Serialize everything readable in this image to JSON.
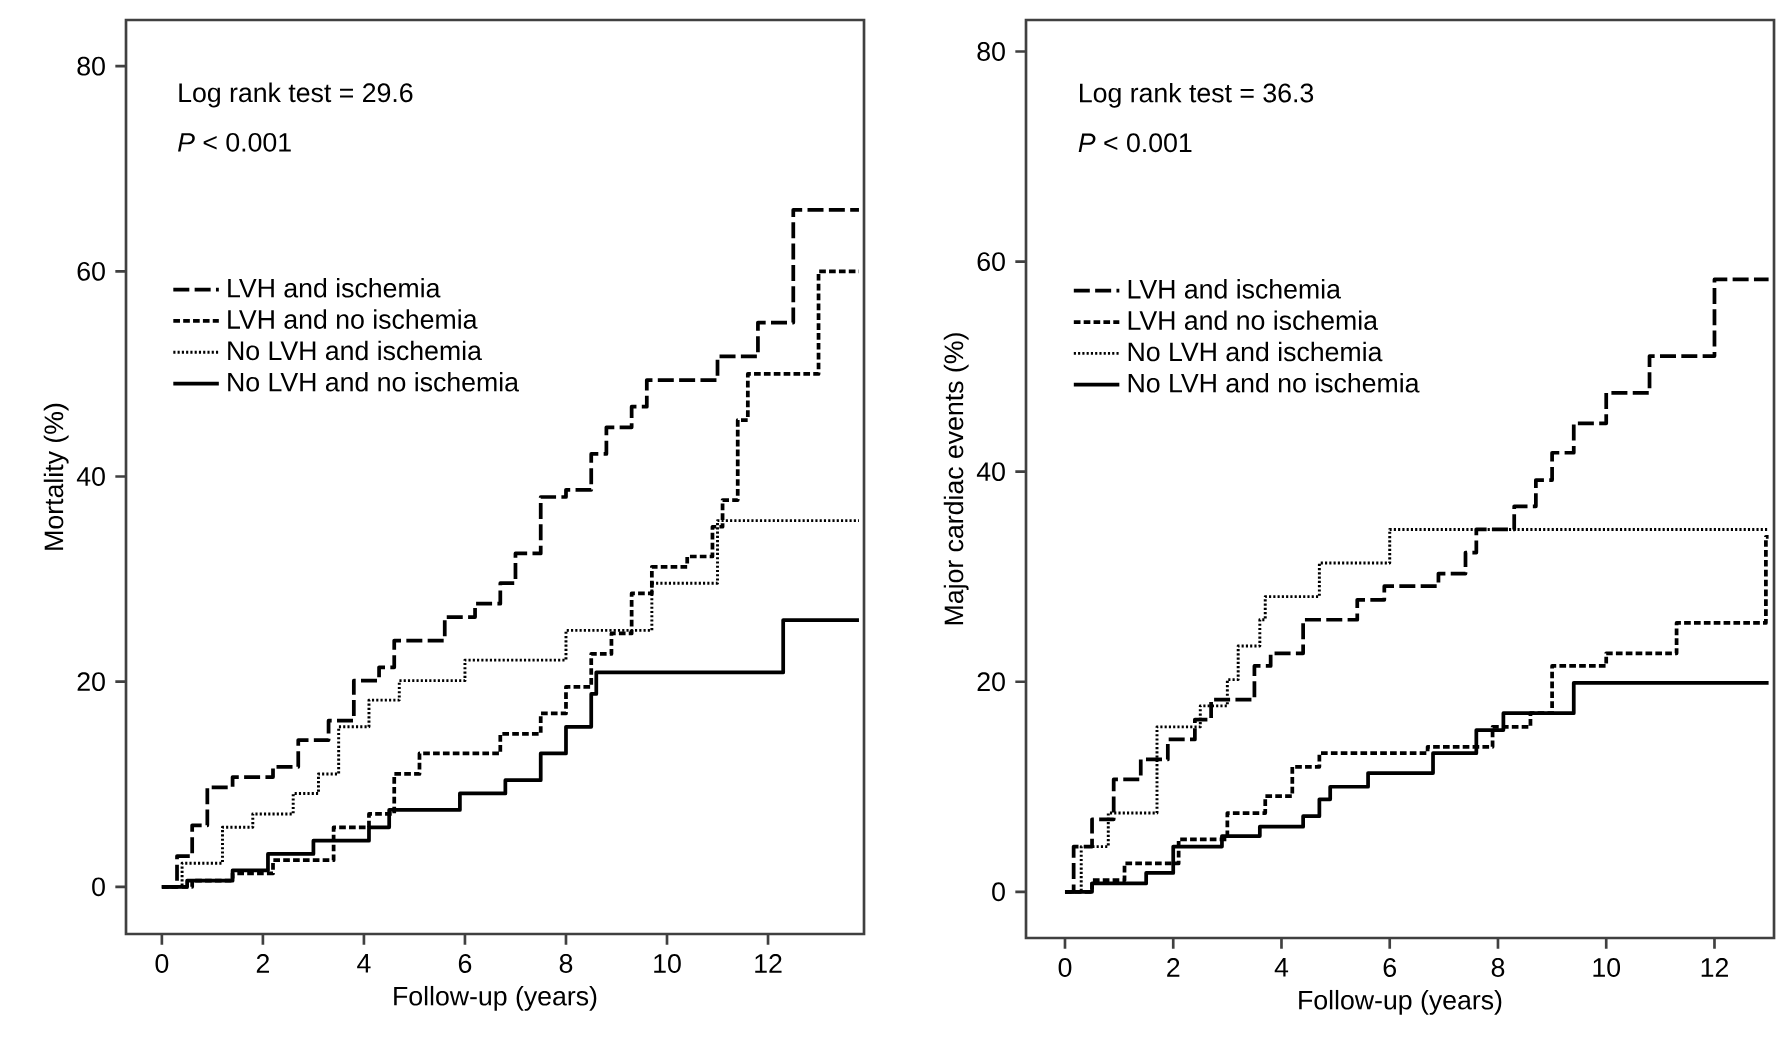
{
  "chart_data": [
    {
      "type": "step",
      "xlabel": "Follow-up (years)",
      "ylabel": "Mortality (%)",
      "xlim": [
        -0.71,
        13.9
      ],
      "ylim": [
        -4.6,
        84.5
      ],
      "xticks": [
        0,
        2,
        4,
        6,
        8,
        10,
        12
      ],
      "yticks": [
        0,
        20,
        40,
        60,
        80
      ],
      "legend": "top left",
      "annotations": [
        "Log rank test = 29.6",
        "*P* < 0.001"
      ],
      "series": [
        {
          "name": "LVH and ischemia",
          "color": "#000000",
          "line_style": "dashed",
          "x": [
            0,
            0.3,
            0.6,
            0.9,
            1.4,
            2.2,
            2.7,
            3.3,
            3.8,
            4.3,
            4.6,
            5.6,
            6.2,
            6.7,
            7.0,
            7.5,
            8.0,
            8.5,
            8.8,
            9.3,
            9.6,
            11.0,
            11.8,
            12.5,
            13.8
          ],
          "values": [
            0,
            3,
            6,
            9.7,
            10.7,
            11.7,
            14.3,
            16.2,
            20.1,
            21.4,
            24,
            26.3,
            27.6,
            29.6,
            32.5,
            38,
            38.7,
            42.2,
            44.8,
            46.8,
            49.4,
            51.7,
            55,
            66,
            66
          ]
        },
        {
          "name": "LVH and no ischemia",
          "color": "#000000",
          "line_style": "dashed",
          "x": [
            0,
            0.6,
            1.4,
            2.2,
            3.4,
            4.1,
            4.6,
            5.1,
            6.7,
            7.5,
            8.0,
            8.5,
            8.9,
            9.3,
            9.7,
            10.4,
            10.9,
            11.1,
            11.4,
            11.6,
            13.0,
            13.8
          ],
          "values": [
            0,
            0.6,
            1.3,
            2.6,
            5.8,
            7.1,
            11,
            13,
            14.9,
            16.9,
            19.5,
            22.7,
            24.7,
            28.6,
            31.2,
            32.2,
            35.1,
            37.7,
            45.5,
            50,
            60,
            60
          ]
        },
        {
          "name": "No LVH and ischemia",
          "color": "#000000",
          "line_style": "dotted",
          "x": [
            0,
            0.4,
            1.2,
            1.8,
            2.6,
            3.1,
            3.5,
            4.1,
            4.7,
            6.0,
            8.0,
            9.7,
            11.0,
            13.8
          ],
          "values": [
            0,
            2.3,
            5.8,
            7.1,
            9.1,
            11,
            15.6,
            18.2,
            20.1,
            22.1,
            25,
            29.6,
            35.7,
            35.7
          ]
        },
        {
          "name": "No LVH and no ischemia",
          "color": "#000000",
          "line_style": "solid",
          "x": [
            0,
            0.5,
            1.4,
            2.1,
            3.0,
            4.1,
            4.5,
            5.9,
            6.8,
            7.5,
            8.0,
            8.5,
            8.6,
            12.3,
            13.8
          ],
          "values": [
            0,
            0.6,
            1.6,
            3.2,
            4.5,
            5.8,
            7.5,
            9.1,
            10.4,
            13,
            15.6,
            18.8,
            20.9,
            26,
            26
          ]
        }
      ]
    },
    {
      "type": "step",
      "xlabel": "Follow-up (years)",
      "ylabel": "Major cardiac events (%)",
      "xlim": [
        -0.72,
        13.1
      ],
      "ylim": [
        -4.4,
        83
      ],
      "xticks": [
        0,
        2,
        4,
        6,
        8,
        10,
        12
      ],
      "yticks": [
        0,
        20,
        40,
        60,
        80
      ],
      "legend": "top left",
      "annotations": [
        "Log rank test = 36.3",
        "*P* < 0.001"
      ],
      "series": [
        {
          "name": "LVH and ischemia",
          "color": "#000000",
          "line_style": "dashed",
          "x": [
            0,
            0.16,
            0.5,
            0.9,
            1.4,
            1.9,
            2.4,
            2.7,
            3.5,
            3.8,
            4.4,
            5.4,
            5.9,
            6.9,
            7.4,
            7.6,
            8.3,
            8.7,
            9.0,
            9.4,
            10.0,
            10.8,
            12.0,
            13.0
          ],
          "values": [
            0,
            4.3,
            6.9,
            10.7,
            12.6,
            14.5,
            16.4,
            18.3,
            21.5,
            22.7,
            25.9,
            27.8,
            29.1,
            30.3,
            32.3,
            34.5,
            36.7,
            39.2,
            41.8,
            44.6,
            47.5,
            51,
            58.3,
            58.3
          ]
        },
        {
          "name": "LVH and no ischemia",
          "color": "#000000",
          "line_style": "dashed",
          "x": [
            0,
            0.5,
            1.1,
            2.1,
            3.0,
            3.7,
            4.2,
            4.7,
            6.7,
            7.9,
            8.6,
            9.0,
            10.0,
            11.3,
            12.95,
            13.0
          ],
          "values": [
            0,
            1.1,
            2.7,
            5,
            7.5,
            9.1,
            11.9,
            13.2,
            13.8,
            15.7,
            17,
            21.5,
            22.7,
            25.6,
            33.8,
            33.8
          ]
        },
        {
          "name": "No LVH and ischemia",
          "color": "#000000",
          "line_style": "dotted",
          "x": [
            0,
            0.3,
            0.8,
            1.7,
            2.5,
            3.0,
            3.2,
            3.6,
            3.7,
            4.7,
            6.0,
            13.0
          ],
          "values": [
            0,
            4.3,
            7.5,
            15.7,
            17.7,
            20.2,
            23.4,
            25.9,
            28.1,
            31.3,
            34.5,
            34.5
          ]
        },
        {
          "name": "No LVH and no ischemia",
          "color": "#000000",
          "line_style": "solid",
          "x": [
            0,
            0.5,
            1.5,
            2.0,
            2.9,
            3.6,
            4.4,
            4.7,
            4.9,
            5.6,
            6.8,
            7.6,
            8.1,
            9.4,
            13.0
          ],
          "values": [
            0,
            0.8,
            1.8,
            4.3,
            5.3,
            6.2,
            7.2,
            8.8,
            10,
            11.3,
            13.2,
            15.4,
            17,
            19.9,
            19.9
          ]
        }
      ]
    }
  ]
}
